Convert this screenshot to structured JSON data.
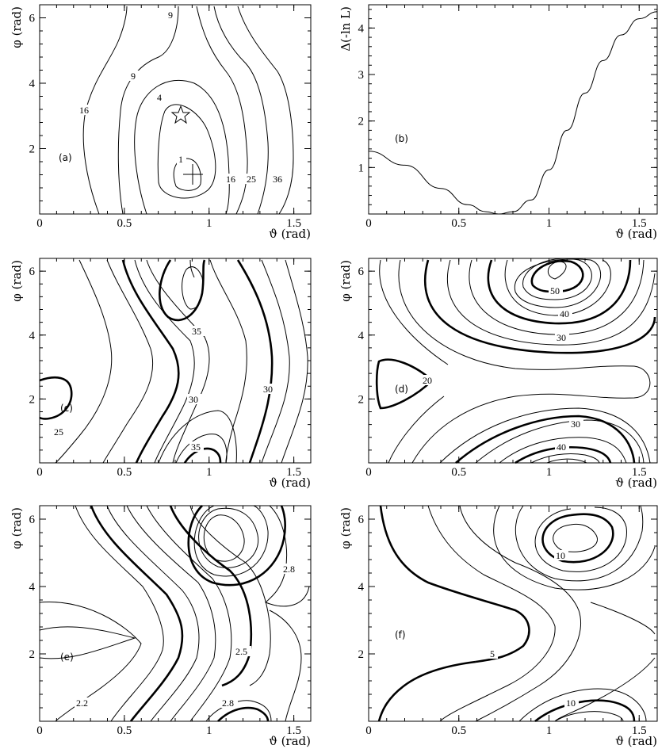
{
  "chart_data": [
    {
      "panel": "(a)",
      "type": "contour",
      "xlabel": "ϑ (rad)",
      "ylabel": "φ (rad)",
      "xlim": [
        0,
        1.6
      ],
      "ylim": [
        0,
        6.4
      ],
      "xticks": [
        "0",
        "0.5",
        "1",
        "1.5"
      ],
      "yticks": [
        "2",
        "4",
        "6"
      ],
      "contour_levels": [
        "1",
        "4",
        "9",
        "9",
        "16",
        "16",
        "25",
        "36"
      ],
      "markers": [
        {
          "kind": "star",
          "x": 0.79,
          "y": 3.14
        },
        {
          "kind": "cross",
          "x": 0.86,
          "y": 1.3
        }
      ]
    },
    {
      "panel": "(b)",
      "type": "line",
      "xlabel": "ϑ (rad)",
      "ylabel": "Δ(-ln L)",
      "xlim": [
        0,
        1.6
      ],
      "ylim": [
        0,
        4.5
      ],
      "xticks": [
        "0",
        "0.5",
        "1",
        "1.5"
      ],
      "yticks": [
        "1",
        "2",
        "3",
        "4"
      ],
      "series": [
        {
          "x": [
            0,
            0.2,
            0.4,
            0.55,
            0.65,
            0.72,
            0.8,
            0.9,
            1.0,
            1.1,
            1.2,
            1.3,
            1.4,
            1.5,
            1.6
          ],
          "y": [
            1.35,
            1.05,
            0.55,
            0.2,
            0.05,
            0.0,
            0.05,
            0.3,
            0.95,
            1.8,
            2.6,
            3.3,
            3.85,
            4.2,
            4.35
          ]
        }
      ]
    },
    {
      "panel": "(c)",
      "type": "contour",
      "xlabel": "ϑ (rad)",
      "ylabel": "φ (rad)",
      "xlim": [
        0,
        1.6
      ],
      "ylim": [
        0,
        6.4
      ],
      "xticks": [
        "0",
        "0.5",
        "1",
        "1.5"
      ],
      "yticks": [
        "2",
        "4",
        "6"
      ],
      "contour_levels": [
        "35",
        "30",
        "30",
        "35",
        "25"
      ]
    },
    {
      "panel": "(d)",
      "type": "contour",
      "xlabel": "ϑ (rad)",
      "ylabel": "φ (rad)",
      "xlim": [
        0,
        1.6
      ],
      "ylim": [
        0,
        6.4
      ],
      "xticks": [
        "0",
        "0.5",
        "1",
        "1.5"
      ],
      "yticks": [
        "2",
        "4",
        "6"
      ],
      "contour_levels": [
        "50",
        "40",
        "30",
        "20",
        "30",
        "40"
      ]
    },
    {
      "panel": "(e)",
      "type": "contour",
      "xlabel": "ϑ (rad)",
      "ylabel": "φ (rad)",
      "xlim": [
        0,
        1.6
      ],
      "ylim": [
        0,
        6.4
      ],
      "xticks": [
        "0",
        "0.5",
        "1",
        "1.5"
      ],
      "yticks": [
        "2",
        "4",
        "6"
      ],
      "contour_levels": [
        "2.8",
        "2.5",
        "2.2",
        "2.8"
      ]
    },
    {
      "panel": "(f)",
      "type": "contour",
      "xlabel": "ϑ (rad)",
      "ylabel": "φ (rad)",
      "xlim": [
        0,
        1.6
      ],
      "ylim": [
        0,
        6.4
      ],
      "xticks": [
        "0",
        "0.5",
        "1",
        "1.5"
      ],
      "yticks": [
        "2",
        "4",
        "6"
      ],
      "contour_levels": [
        "10",
        "5",
        "10"
      ]
    }
  ]
}
